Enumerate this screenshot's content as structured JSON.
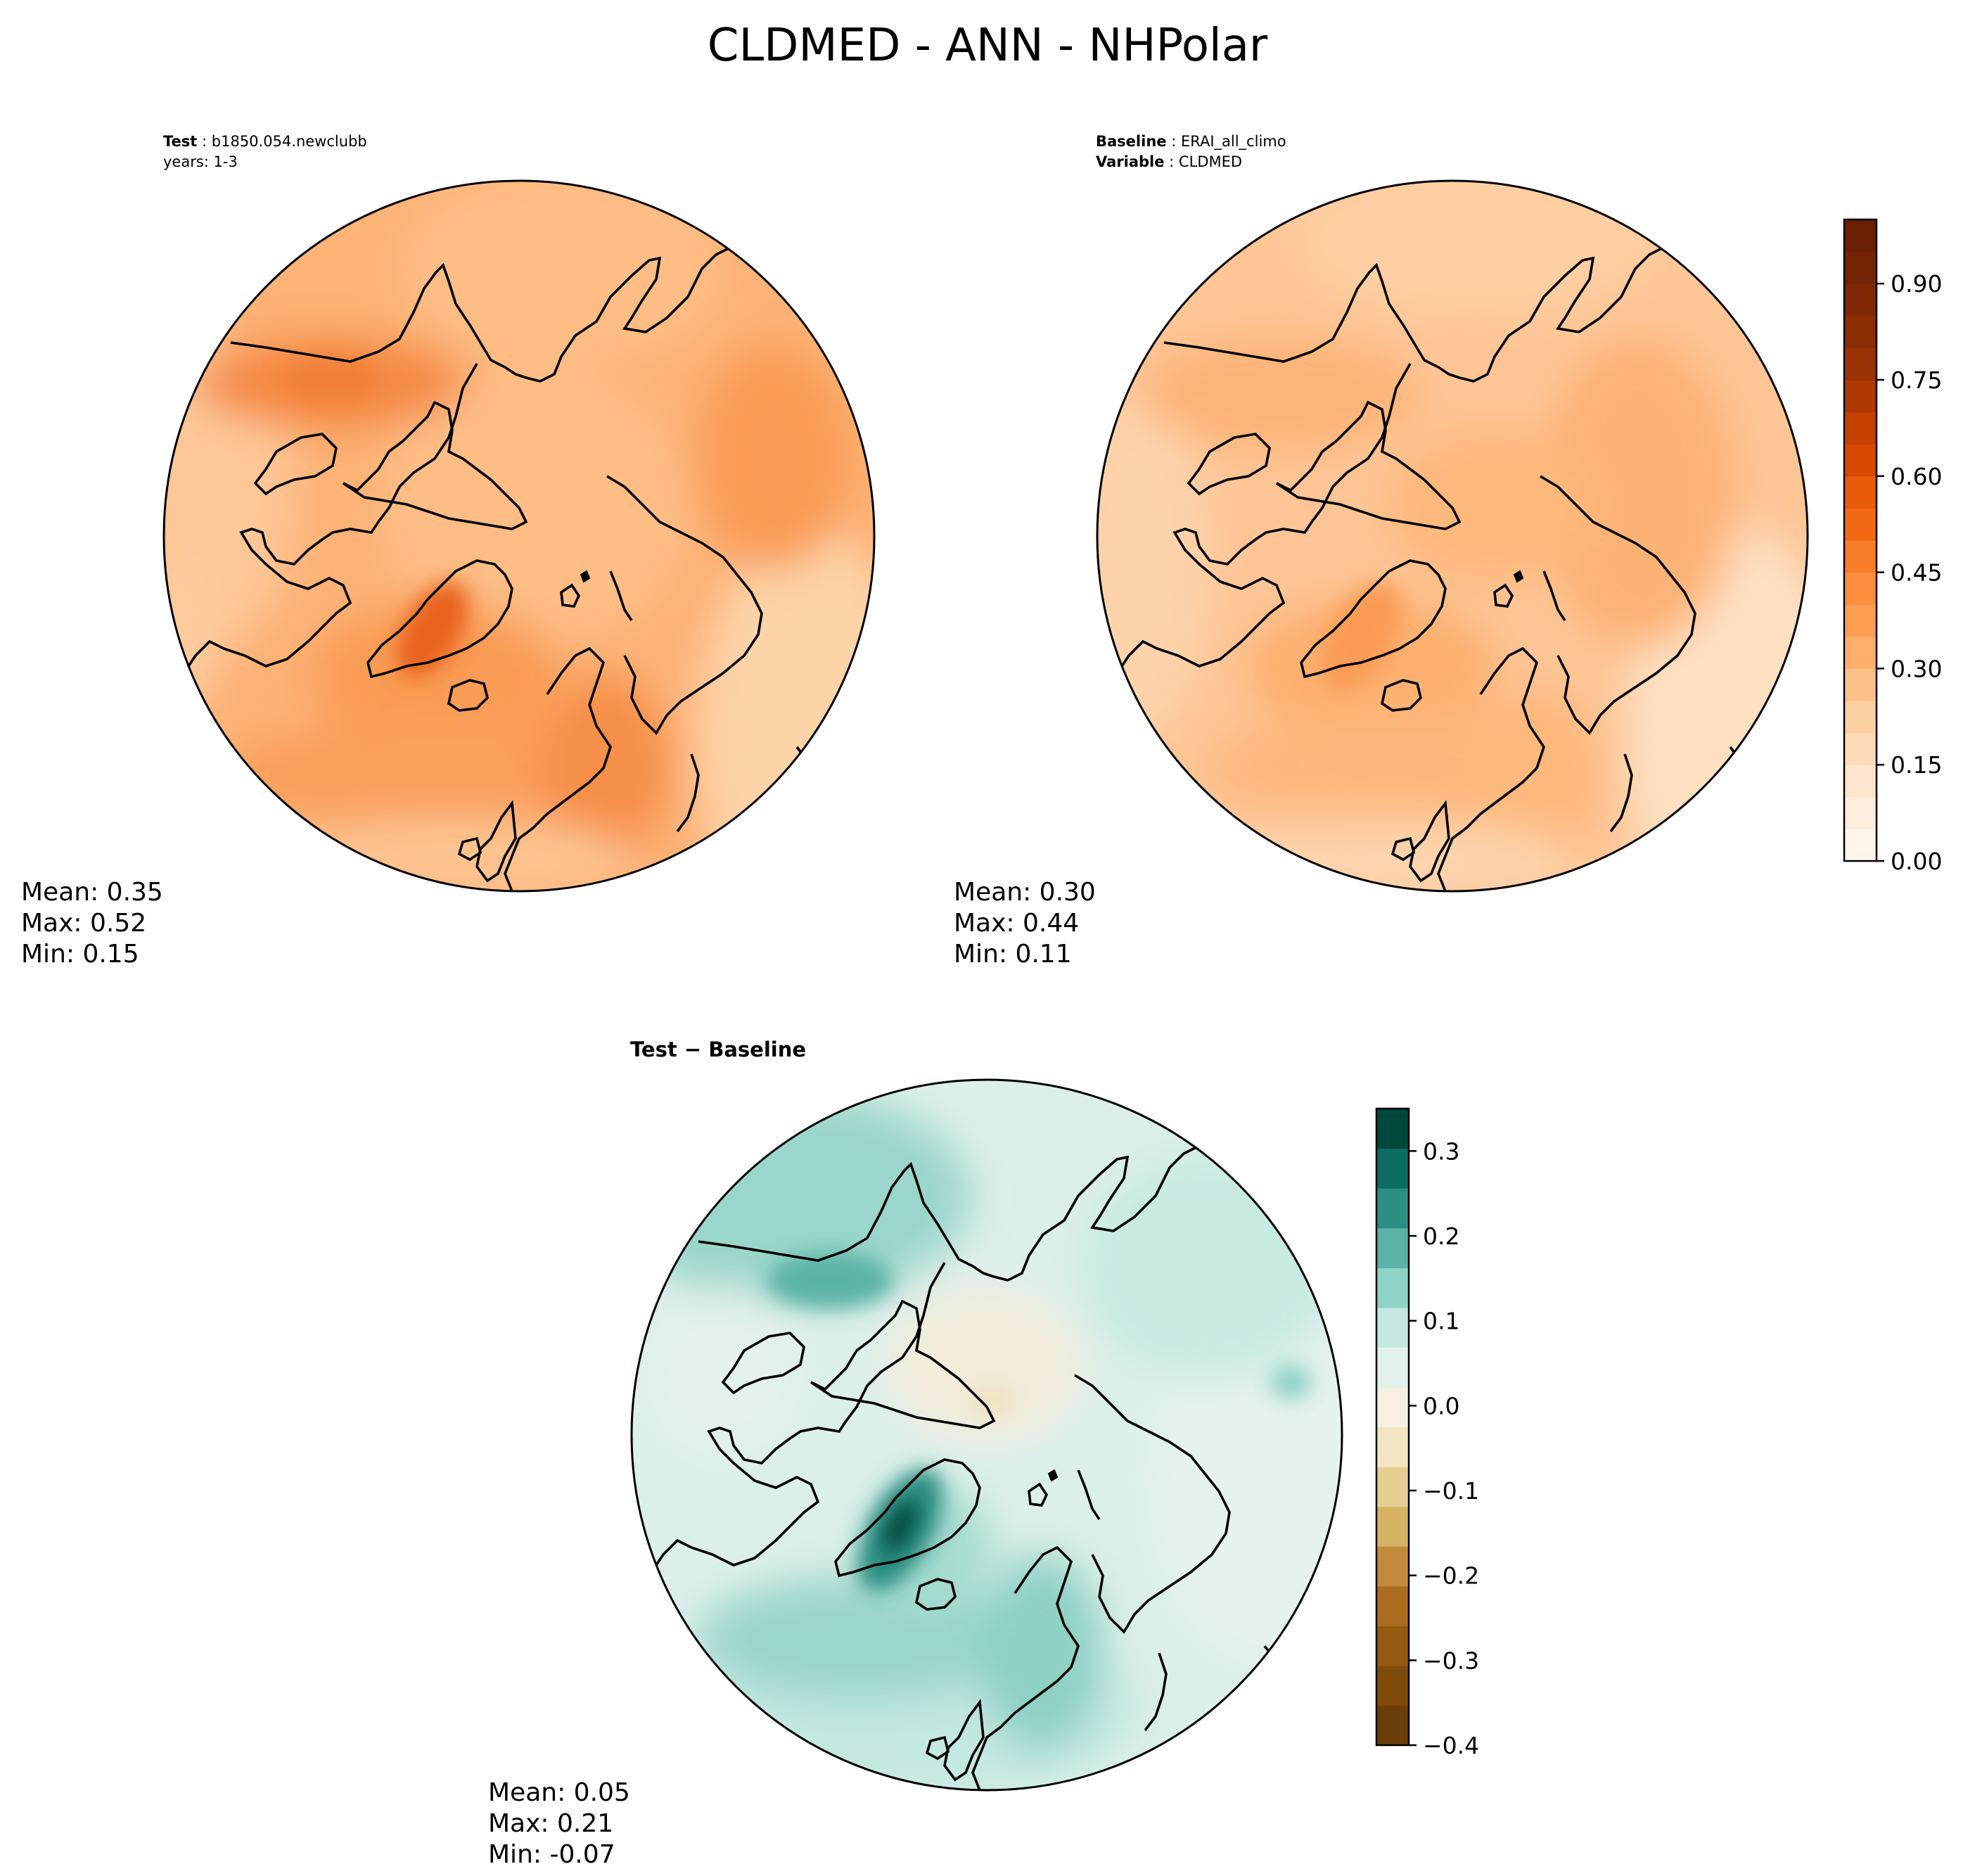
{
  "chart_data": {
    "type": "heatmap",
    "title": "CLDMED - ANN - NHPolar",
    "projection": "north-polar-stereographic",
    "panels": [
      {
        "id": "test",
        "header_lines": [
          {
            "label": "Test",
            "value": "b1850.054.newclubb"
          },
          {
            "label": "",
            "value": "years: 1-3"
          }
        ],
        "stats": {
          "mean": "Mean:  0.35",
          "max": "Max:  0.52",
          "min": "Min:  0.15"
        },
        "colormap": "Oranges",
        "value_range": [
          0.15,
          0.52
        ]
      },
      {
        "id": "baseline",
        "header_lines": [
          {
            "label": "Baseline",
            "value": "ERAI_all_climo"
          },
          {
            "label": "Variable",
            "value": "CLDMED"
          }
        ],
        "stats": {
          "mean": "Mean:  0.30",
          "max": "Max:  0.44",
          "min": "Min:  0.11"
        },
        "colormap": "Oranges",
        "value_range": [
          0.11,
          0.44
        ]
      },
      {
        "id": "difference",
        "title": "Test − Baseline",
        "stats": {
          "mean": "Mean:  0.05",
          "max": "Max:  0.21",
          "min": "Min: -0.07"
        },
        "colormap": "BrBG",
        "value_range": [
          -0.07,
          0.21
        ]
      }
    ],
    "colorbars": [
      {
        "id": "main",
        "range": [
          0.0,
          1.0
        ],
        "ticks": [
          0.0,
          0.15,
          0.3,
          0.45,
          0.6,
          0.75,
          0.9
        ],
        "tick_labels": [
          "0.00",
          "0.15",
          "0.30",
          "0.45",
          "0.60",
          "0.75",
          "0.90"
        ],
        "levels": 20,
        "colors": [
          "#fff5eb",
          "#ffeedd",
          "#fee6ce",
          "#fddbb8",
          "#fdd0a2",
          "#fdc089",
          "#fdae6b",
          "#fd9d53",
          "#fd8d3c",
          "#f87d2b",
          "#f16913",
          "#e85b0b",
          "#d94801",
          "#c44102",
          "#b03903",
          "#9b3203",
          "#8c2d04",
          "#7f2704",
          "#742304",
          "#6a1f03"
        ]
      },
      {
        "id": "diff",
        "range": [
          -0.4,
          0.35
        ],
        "ticks": [
          0.3,
          0.2,
          0.1,
          0.0,
          -0.1,
          -0.2,
          -0.3,
          -0.4
        ],
        "tick_labels": [
          "0.3",
          "0.2",
          "0.1",
          "0.0",
          "−0.1",
          "−0.2",
          "−0.3",
          "−0.4"
        ],
        "levels": 15,
        "colors": [
          "#6b3d08",
          "#7f4b0a",
          "#955a10",
          "#ac6c1e",
          "#c28a3a",
          "#d6b263",
          "#e6cf93",
          "#f2e6c2",
          "#f6f0e3",
          "#e3f1ee",
          "#c4e8e2",
          "#8fd3c6",
          "#5ab3a5",
          "#2b8e82",
          "#0d6d60",
          "#00473b"
        ]
      }
    ]
  }
}
